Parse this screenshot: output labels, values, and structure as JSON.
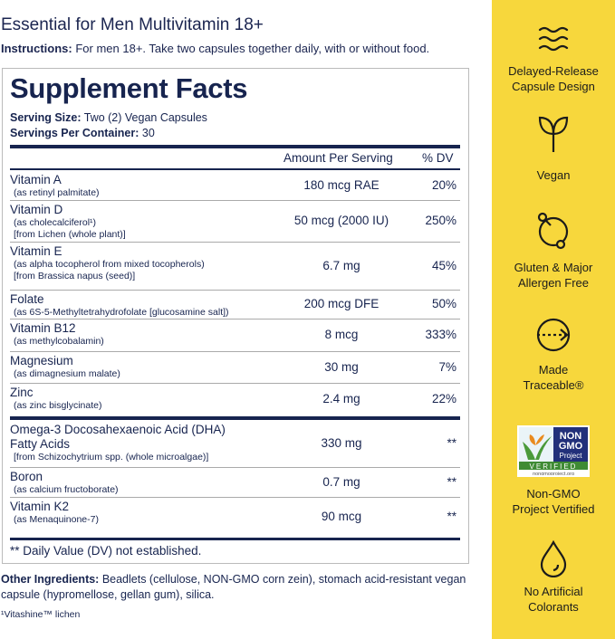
{
  "title": "Essential for Men Multivitamin 18+",
  "instructions": {
    "label": "Instructions:",
    "text": " For men 18+. Take two capsules together daily, with or without food."
  },
  "facts": {
    "heading": "Supplement Facts",
    "serving_size_label": "Serving Size:",
    "serving_size": " Two (2) Vegan Capsules",
    "servings_label": "Servings Per Container:",
    "servings": " 30",
    "col_amount": "Amount Per Serving",
    "col_dv": "% DV",
    "rows": [
      {
        "name": "Vitamin A",
        "sub": [
          "(as retinyl palmitate)"
        ],
        "amount": "180 mcg RAE",
        "dv": "20%"
      },
      {
        "name": "Vitamin D",
        "sub": [
          "(as cholecalciferol¹)",
          "[from Lichen (whole plant)]"
        ],
        "amount": "50 mcg (2000 IU)",
        "dv": "250%"
      },
      {
        "name": "Vitamin E",
        "sub": [
          "(as alpha tocopherol from mixed tocopherols)",
          "[from Brassica napus (seed)]"
        ],
        "amount": "6.7 mg",
        "dv": "45%"
      },
      {
        "name": "Folate",
        "sub": [
          "(as 6S-5-Methyltetrahydrofolate [glucosamine salt])"
        ],
        "amount": "200 mcg DFE",
        "dv": "50%"
      },
      {
        "name": "Vitamin B12",
        "sub": [
          "(as methylcobalamin)"
        ],
        "amount": "8 mcg",
        "dv": "333%"
      },
      {
        "name": "Magnesium",
        "sub": [
          "(as dimagnesium malate)"
        ],
        "amount": "30 mg",
        "dv": "7%"
      },
      {
        "name": "Zinc",
        "sub": [
          "(as zinc bisglycinate)"
        ],
        "amount": "2.4 mg",
        "dv": "22%"
      },
      {
        "name": "Omega-3 Docosahexaenoic Acid (DHA)",
        "name2": "Fatty Acids",
        "sub": [
          "[from Schizochytrium spp. (whole microalgae)]"
        ],
        "amount": "330 mg",
        "dv": "**"
      },
      {
        "name": "Boron",
        "sub": [
          "(as calcium fructoborate)"
        ],
        "amount": "0.7 mg",
        "dv": "**"
      },
      {
        "name": "Vitamin K2",
        "sub": [
          "(as Menaquinone-7)"
        ],
        "amount": "90 mcg",
        "dv": "**"
      }
    ],
    "footnote": "** Daily Value (DV) not established."
  },
  "other": {
    "label": "Other Ingredients:",
    "text": " Beadlets (cellulose, NON-GMO corn zein), stomach acid-resistant vegan capsule (hypromellose, gellan gum), silica."
  },
  "lichen_note": "¹Vitashine™ lichen",
  "features": [
    {
      "icon": "waves-icon",
      "l1": "Delayed-Release",
      "l2": "Capsule Design"
    },
    {
      "icon": "sprout-icon",
      "l1": "Vegan",
      "l2": ""
    },
    {
      "icon": "molecule-icon",
      "l1": "Gluten & Major",
      "l2": "Allergen Free"
    },
    {
      "icon": "traceable-arrow-icon",
      "l1": "Made",
      "l2": "Traceable®"
    },
    {
      "icon": "non-gmo-badge",
      "l1": "Non-GMO",
      "l2": "Project Vertified",
      "badge": [
        "NON",
        "GMO",
        "Project",
        "VERIFIED",
        "nongmoproject.org"
      ]
    },
    {
      "icon": "droplet-icon",
      "l1": "No Artificial",
      "l2": "Colorants"
    }
  ],
  "colors": {
    "navy": "#17244f",
    "yellow": "#f7d73c"
  }
}
